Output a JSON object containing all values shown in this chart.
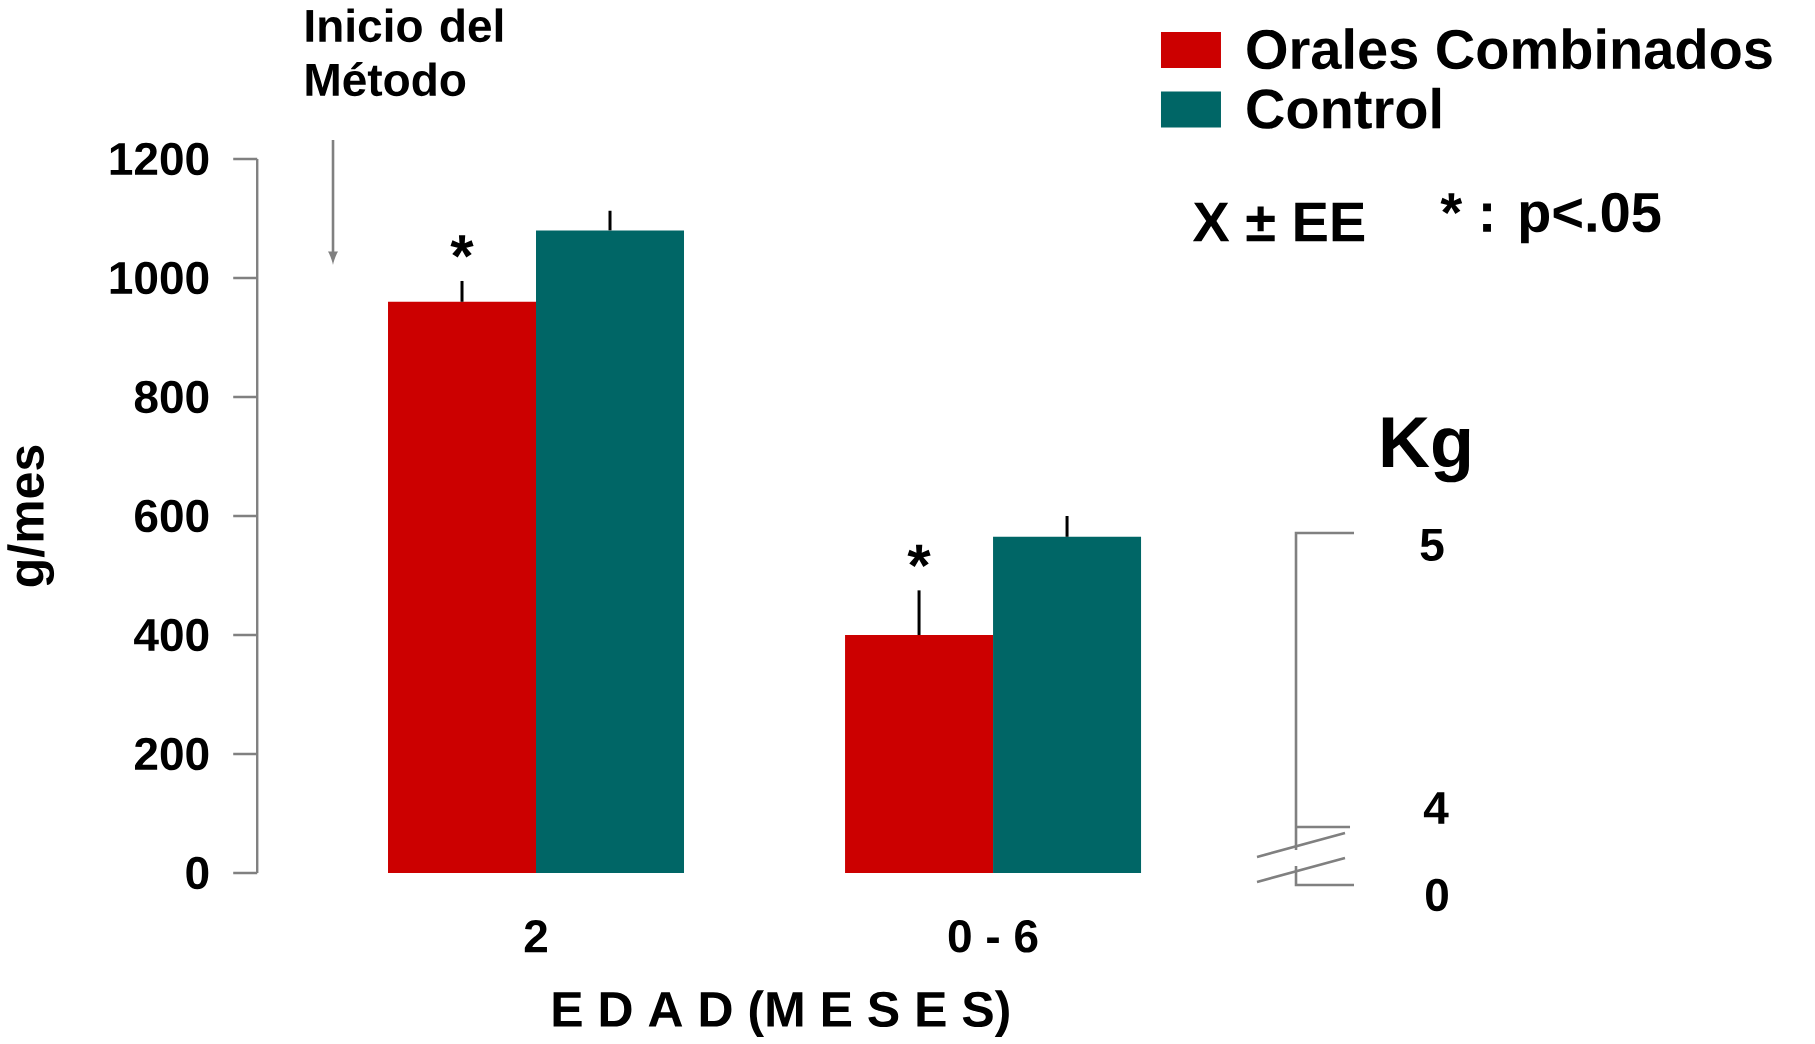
{
  "chart_data": {
    "type": "bar",
    "categories": [
      "2",
      "0 - 6"
    ],
    "xlabel": "E D A D (M E S E S)",
    "ylabel": "g/mes",
    "ylim": [
      0,
      1200
    ],
    "yticks": [
      0,
      200,
      400,
      600,
      800,
      1000,
      1200
    ],
    "legend": "top right",
    "series": [
      {
        "name": "Orales Combinados",
        "color": "#cc0000",
        "values": [
          960,
          400
        ],
        "errors": [
          35,
          75
        ]
      },
      {
        "name": "Control",
        "color": "#006666",
        "values": [
          1080,
          565
        ],
        "errors": [
          33,
          35
        ]
      }
    ],
    "annotations": [
      "Inicio del Método",
      "*",
      "*",
      "X ± EE",
      "*  :  p<.05",
      "Kg",
      "5",
      "4",
      "0"
    ]
  }
}
